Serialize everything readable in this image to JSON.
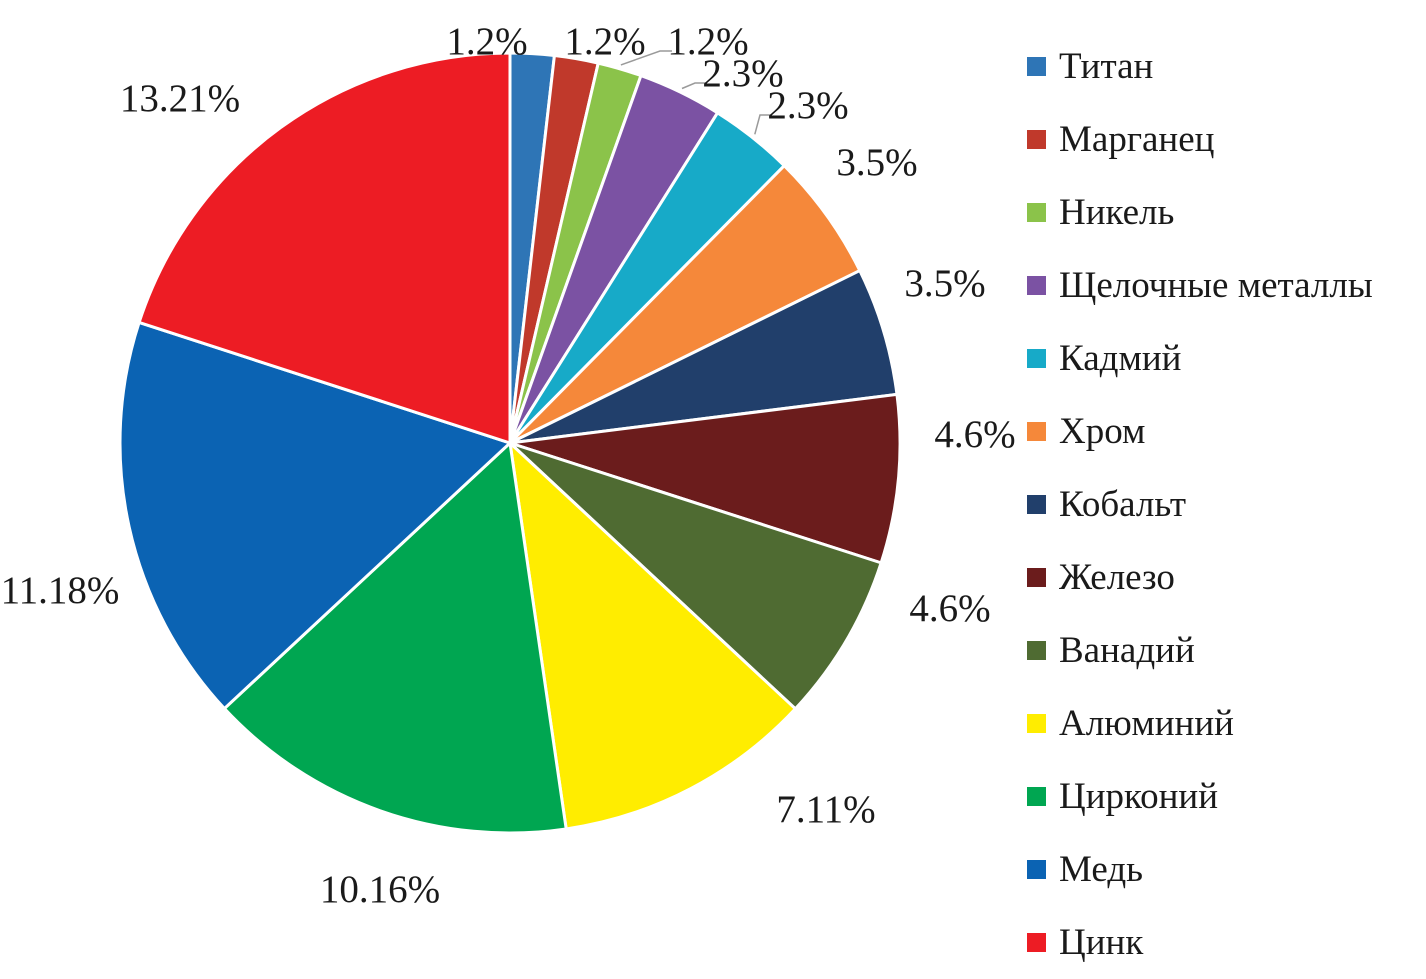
{
  "chart_data": {
    "type": "pie",
    "start": "top",
    "direction": "clockwise",
    "slices": [
      {
        "name": "Титан",
        "label": "1.2%",
        "value": 1.2,
        "color": "#2e75b6"
      },
      {
        "name": "Марганец",
        "label": "1.2%",
        "value": 1.2,
        "color": "#c0392b"
      },
      {
        "name": "Никель",
        "label": "1.2%",
        "value": 1.2,
        "color": "#8bc34a"
      },
      {
        "name": "Щелочные металлы",
        "label": "2.3%",
        "value": 2.3,
        "color": "#7b52a3"
      },
      {
        "name": "Кадмий",
        "label": "2.3%",
        "value": 2.3,
        "color": "#17aac8"
      },
      {
        "name": "Хром",
        "label": "3.5%",
        "value": 3.5,
        "color": "#f5883a"
      },
      {
        "name": "Кобальт",
        "label": "3.5%",
        "value": 3.5,
        "color": "#213f6b"
      },
      {
        "name": "Железо",
        "label": "4.6%",
        "value": 4.6,
        "color": "#6b1c1c"
      },
      {
        "name": "Ванадий",
        "label": "4.6%",
        "value": 4.6,
        "color": "#4f6b32"
      },
      {
        "name": "Алюминий",
        "label": "7.11%",
        "value": 7.11,
        "color": "#ffed00"
      },
      {
        "name": "Цирконий",
        "label": "10.16%",
        "value": 10.16,
        "color": "#00a651"
      },
      {
        "name": "Медь",
        "label": "11.18%",
        "value": 11.18,
        "color": "#0b63b3"
      },
      {
        "name": "Цинк",
        "label": "13.21%",
        "value": 13.21,
        "color": "#ed1c24"
      }
    ],
    "legend_position": "right"
  }
}
